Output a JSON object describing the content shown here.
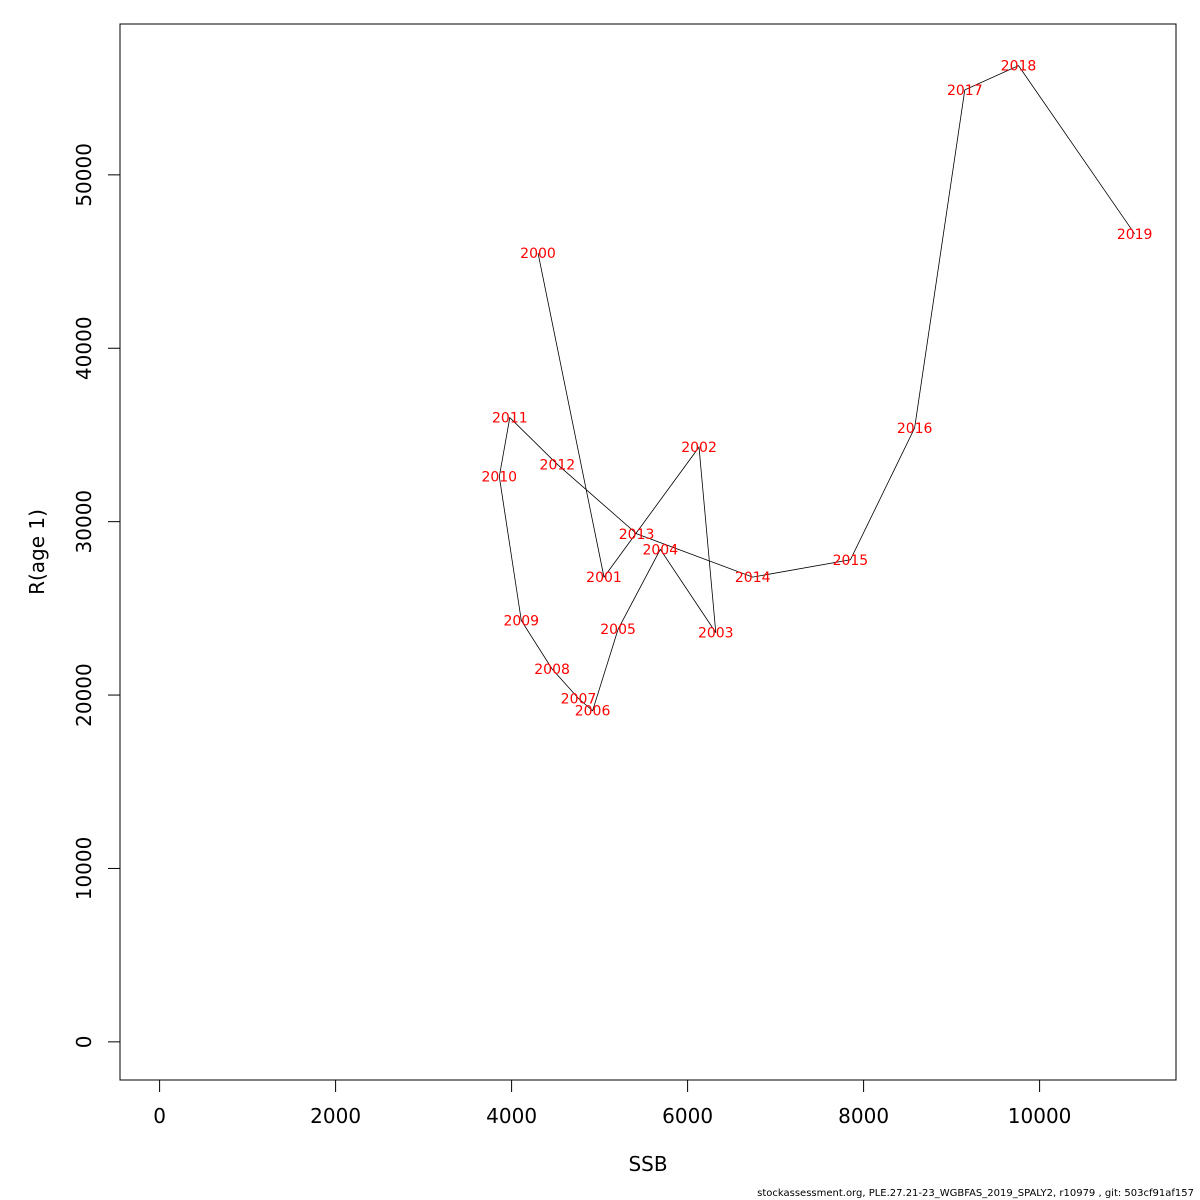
{
  "chart_data": {
    "type": "line",
    "title": "",
    "xlabel": "SSB",
    "ylabel": "R(age 1)",
    "xlim": [
      -450,
      11550
    ],
    "ylim": [
      -2200,
      58700
    ],
    "xticks": [
      0,
      2000,
      4000,
      6000,
      8000,
      10000
    ],
    "yticks": [
      0,
      10000,
      20000,
      30000,
      40000,
      50000
    ],
    "grid": false,
    "legend": "none",
    "label_color": "#ff0000",
    "line_color": "#000000",
    "points": [
      {
        "year": "2000",
        "x": 4300,
        "y": 45500
      },
      {
        "year": "2001",
        "x": 5050,
        "y": 26800
      },
      {
        "year": "2002",
        "x": 6130,
        "y": 34300
      },
      {
        "year": "2003",
        "x": 6320,
        "y": 23600
      },
      {
        "year": "2004",
        "x": 5690,
        "y": 28400
      },
      {
        "year": "2005",
        "x": 5210,
        "y": 23800
      },
      {
        "year": "2006",
        "x": 4920,
        "y": 19100
      },
      {
        "year": "2007",
        "x": 4760,
        "y": 19800
      },
      {
        "year": "2008",
        "x": 4460,
        "y": 21500
      },
      {
        "year": "2009",
        "x": 4110,
        "y": 24300
      },
      {
        "year": "2010",
        "x": 3860,
        "y": 32600
      },
      {
        "year": "2011",
        "x": 3980,
        "y": 36000
      },
      {
        "year": "2012",
        "x": 4520,
        "y": 33300
      },
      {
        "year": "2013",
        "x": 5420,
        "y": 29300
      },
      {
        "year": "2014",
        "x": 6740,
        "y": 26800
      },
      {
        "year": "2015",
        "x": 7850,
        "y": 27800
      },
      {
        "year": "2016",
        "x": 8580,
        "y": 35400
      },
      {
        "year": "2017",
        "x": 9150,
        "y": 54900
      },
      {
        "year": "2018",
        "x": 9760,
        "y": 56300
      },
      {
        "year": "2019",
        "x": 11080,
        "y": 46600
      }
    ]
  },
  "footer": "stockassessment.org, PLE.27.21-23_WGBFAS_2019_SPALY2, r10979 , git: 503cf91af157"
}
